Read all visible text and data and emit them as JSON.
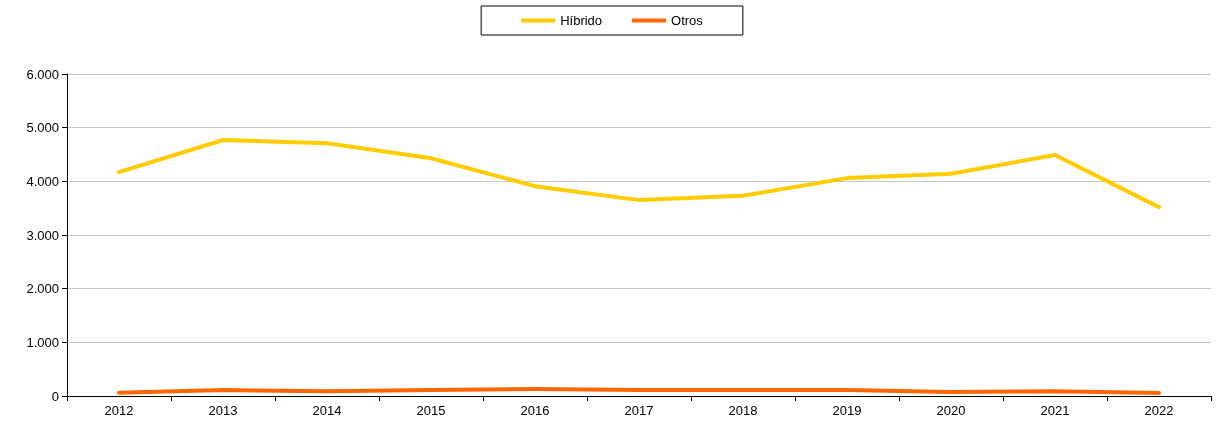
{
  "chart_data": {
    "type": "line",
    "categories": [
      "2012",
      "2013",
      "2014",
      "2015",
      "2016",
      "2017",
      "2018",
      "2019",
      "2020",
      "2021",
      "2022"
    ],
    "series": [
      {
        "name": "Híbrido",
        "color": "#ffcc00",
        "values": [
          4170,
          4770,
          4710,
          4430,
          3910,
          3650,
          3730,
          4060,
          4140,
          4490,
          3520
        ]
      },
      {
        "name": "Otros",
        "color": "#ff6600",
        "values": [
          60,
          110,
          90,
          110,
          130,
          110,
          110,
          110,
          75,
          90,
          55
        ]
      }
    ],
    "ylim": [
      0,
      6000
    ],
    "yticks": [
      {
        "value": 0,
        "label": "0"
      },
      {
        "value": 1000,
        "label": "1.000"
      },
      {
        "value": 2000,
        "label": "2.000"
      },
      {
        "value": 3000,
        "label": "3.000"
      },
      {
        "value": 4000,
        "label": "4.000"
      },
      {
        "value": 5000,
        "label": "5.000"
      },
      {
        "value": 6000,
        "label": "6.000"
      }
    ],
    "grid": "y",
    "legend": "top",
    "marker": "none",
    "line_style": "solid"
  }
}
